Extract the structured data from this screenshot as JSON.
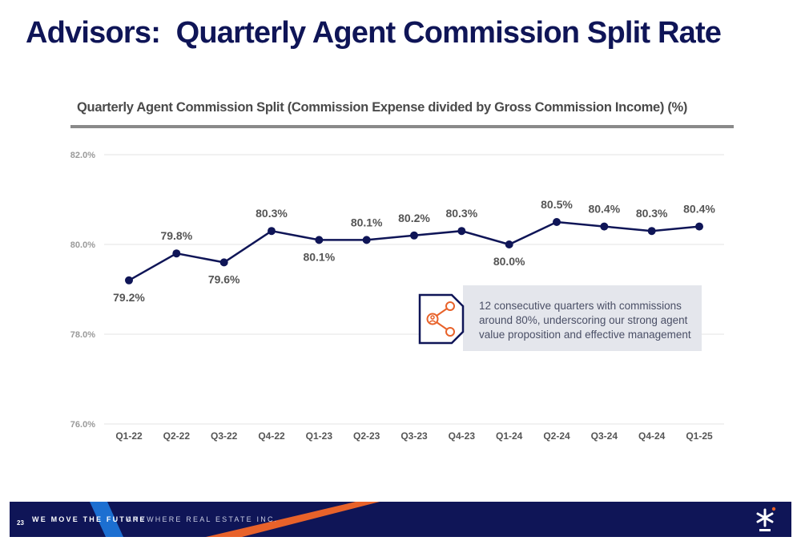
{
  "page": {
    "title": "Advisors:  Quarterly Agent Commission Split Rate"
  },
  "callout": {
    "icon": "share-nodes-icon",
    "text": "12 consecutive quarters with commissions around 80%, underscoring our strong agent value proposition and effective management"
  },
  "footer": {
    "page_number": "23",
    "tagline": "WE MOVE THE FUTURE",
    "company": "ANYWHERE REAL ESTATE INC.",
    "logo": "asterisk-logo-icon"
  },
  "colors": {
    "title": "#0f1557",
    "line": "#0f1557",
    "accent": "#e8622a",
    "accent_blue": "#1c6fd1",
    "callout_bg": "#e4e6ec"
  },
  "chart_data": {
    "type": "line",
    "title": "Quarterly Agent Commission Split (Commission Expense divided by Gross Commission Income) (%)",
    "categories": [
      "Q1-22",
      "Q2-22",
      "Q3-22",
      "Q4-22",
      "Q1-23",
      "Q2-23",
      "Q3-23",
      "Q4-23",
      "Q1-24",
      "Q2-24",
      "Q3-24",
      "Q4-24",
      "Q1-25"
    ],
    "values": [
      79.2,
      79.8,
      79.6,
      80.3,
      80.1,
      80.1,
      80.2,
      80.3,
      80.0,
      80.5,
      80.4,
      80.3,
      80.4
    ],
    "data_labels": [
      "79.2%",
      "79.8%",
      "79.6%",
      "80.3%",
      "80.1%",
      "80.1%",
      "80.2%",
      "80.3%",
      "80.0%",
      "80.5%",
      "80.4%",
      "80.3%",
      "80.4%"
    ],
    "yticks": [
      "76.0%",
      "78.0%",
      "80.0%",
      "82.0%"
    ],
    "ylim": [
      76,
      82
    ],
    "grid": true,
    "legend": "none"
  }
}
